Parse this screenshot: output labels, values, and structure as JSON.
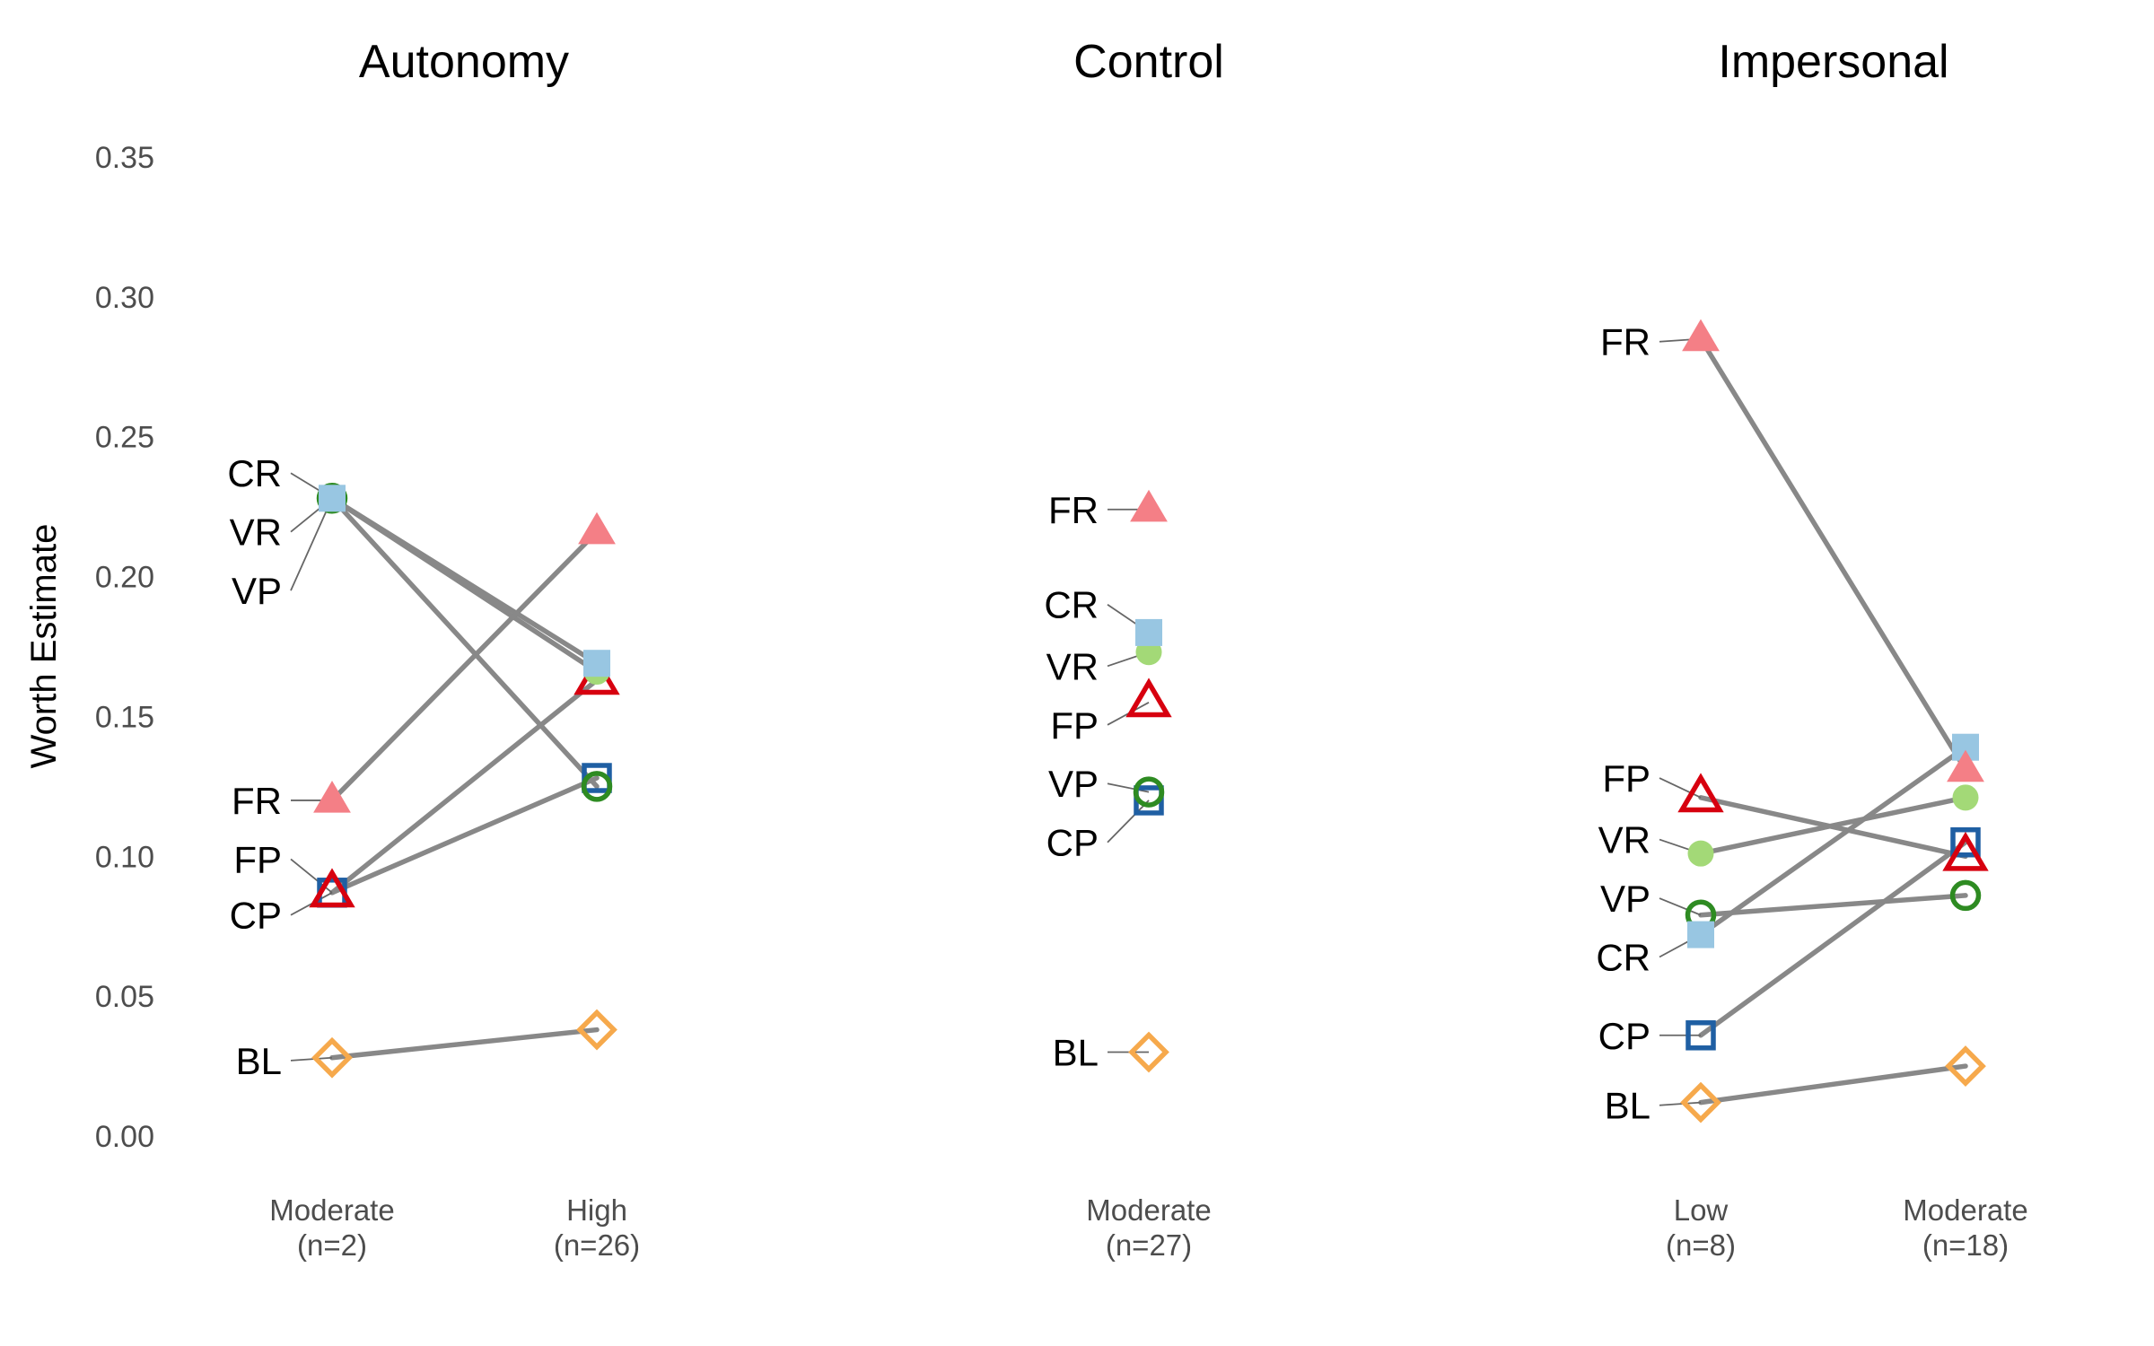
{
  "chart_data": {
    "type": "line",
    "ylabel": "Worth Estimate",
    "ylim": [
      0,
      0.35
    ],
    "yticks": [
      "0.00",
      "0.05",
      "0.10",
      "0.15",
      "0.20",
      "0.25",
      "0.30",
      "0.35"
    ],
    "colors": {
      "FR": "#f47f86",
      "FP": "#d7000f",
      "CR": "#98c6e2",
      "CP": "#1f5fa3",
      "VR": "#a3d977",
      "VP": "#2e8b22",
      "BL": "#f6a94c"
    },
    "markers": {
      "FR": "triangle-filled",
      "FP": "triangle-open",
      "CR": "square-filled",
      "CP": "square-open",
      "VR": "circle-filled",
      "VP": "circle-open",
      "BL": "diamond-open"
    },
    "facets": [
      {
        "title": "Autonomy",
        "groups": [
          {
            "label": "Moderate",
            "n": "(n=2)"
          },
          {
            "label": "High",
            "n": "(n=26)"
          }
        ],
        "series": [
          {
            "name": "CR",
            "values": [
              0.228,
              0.169
            ]
          },
          {
            "name": "VR",
            "values": [
              0.228,
              0.166
            ]
          },
          {
            "name": "VP",
            "values": [
              0.228,
              0.125
            ]
          },
          {
            "name": "FR",
            "values": [
              0.12,
              0.216
            ]
          },
          {
            "name": "FP",
            "values": [
              0.087,
              0.163
            ]
          },
          {
            "name": "CP",
            "values": [
              0.087,
              0.128
            ]
          },
          {
            "name": "BL",
            "values": [
              0.028,
              0.038
            ]
          }
        ],
        "labels": [
          {
            "name": "CR",
            "at": 0.237
          },
          {
            "name": "VR",
            "at": 0.216
          },
          {
            "name": "VP",
            "at": 0.195
          },
          {
            "name": "FR",
            "at": 0.12
          },
          {
            "name": "FP",
            "at": 0.099
          },
          {
            "name": "CP",
            "at": 0.079
          },
          {
            "name": "BL",
            "at": 0.027
          }
        ]
      },
      {
        "title": "Control",
        "groups": [
          {
            "label": "Moderate",
            "n": "(n=27)"
          }
        ],
        "series": [
          {
            "name": "FR",
            "values": [
              0.224
            ]
          },
          {
            "name": "CR",
            "values": [
              0.18
            ]
          },
          {
            "name": "VR",
            "values": [
              0.173
            ]
          },
          {
            "name": "FP",
            "values": [
              0.155
            ]
          },
          {
            "name": "VP",
            "values": [
              0.123
            ]
          },
          {
            "name": "CP",
            "values": [
              0.12
            ]
          },
          {
            "name": "BL",
            "values": [
              0.03
            ]
          }
        ],
        "labels": [
          {
            "name": "FR",
            "at": 0.224
          },
          {
            "name": "CR",
            "at": 0.19
          },
          {
            "name": "VR",
            "at": 0.168
          },
          {
            "name": "FP",
            "at": 0.147
          },
          {
            "name": "VP",
            "at": 0.126
          },
          {
            "name": "CP",
            "at": 0.105
          },
          {
            "name": "BL",
            "at": 0.03
          }
        ]
      },
      {
        "title": "Impersonal",
        "groups": [
          {
            "label": "Low",
            "n": "(n=8)"
          },
          {
            "label": "Moderate",
            "n": "(n=18)"
          }
        ],
        "series": [
          {
            "name": "FR",
            "values": [
              0.285,
              0.131
            ]
          },
          {
            "name": "FP",
            "values": [
              0.121,
              0.1
            ]
          },
          {
            "name": "VR",
            "values": [
              0.101,
              0.121
            ]
          },
          {
            "name": "VP",
            "values": [
              0.079,
              0.086
            ]
          },
          {
            "name": "CR",
            "values": [
              0.072,
              0.139
            ]
          },
          {
            "name": "CP",
            "values": [
              0.036,
              0.105
            ]
          },
          {
            "name": "BL",
            "values": [
              0.012,
              0.025
            ]
          }
        ],
        "labels": [
          {
            "name": "FR",
            "at": 0.284
          },
          {
            "name": "FP",
            "at": 0.128
          },
          {
            "name": "VR",
            "at": 0.106
          },
          {
            "name": "VP",
            "at": 0.085
          },
          {
            "name": "CR",
            "at": 0.064
          },
          {
            "name": "CP",
            "at": 0.036
          },
          {
            "name": "BL",
            "at": 0.011
          }
        ]
      }
    ]
  }
}
